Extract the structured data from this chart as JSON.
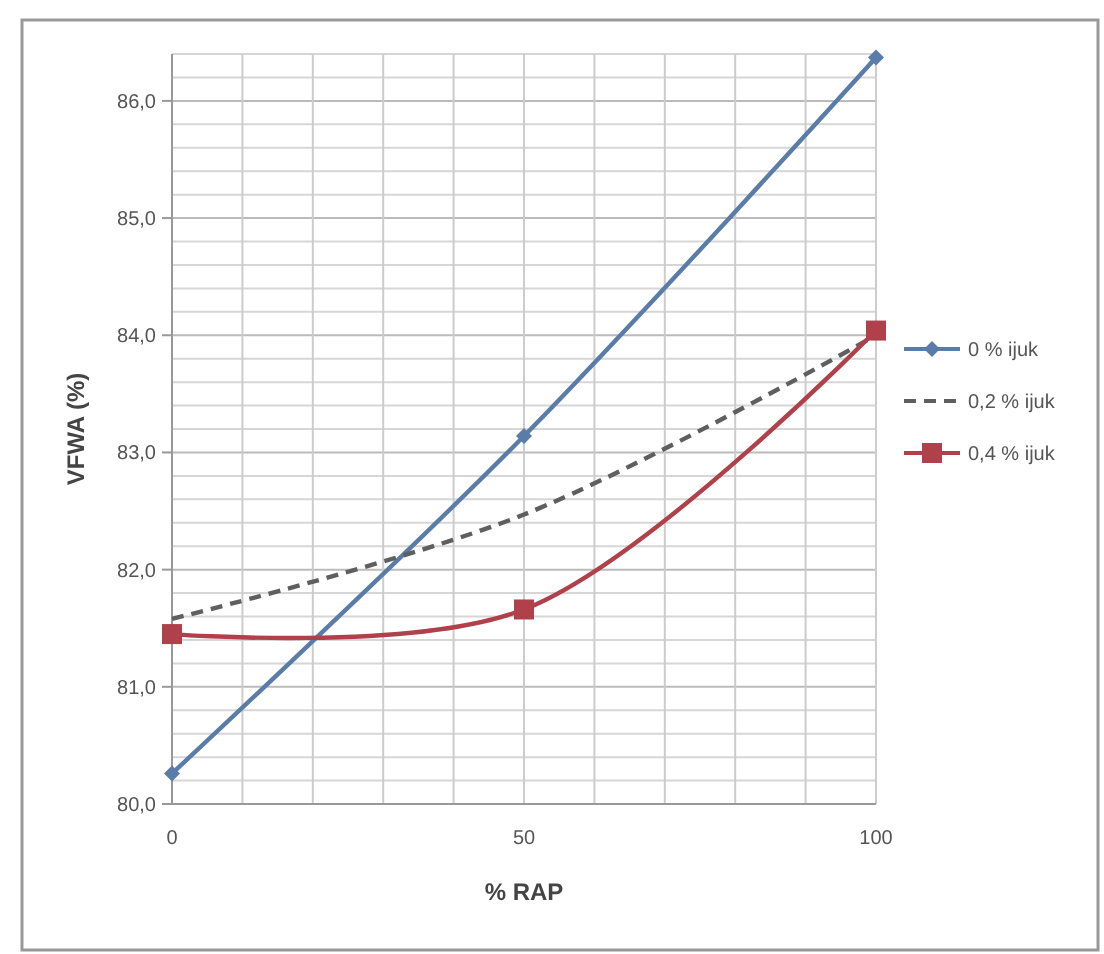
{
  "chart_data": {
    "type": "line",
    "xlabel": "% RAP",
    "ylabel": "VFWA (%)",
    "x": [
      0,
      50,
      100
    ],
    "xlim": [
      0,
      100
    ],
    "ylim": [
      80,
      86.4
    ],
    "xticks": [
      0,
      {
        "value": 10,
        "label": null
      },
      {
        "value": 20,
        "label": null
      },
      {
        "value": 30,
        "label": null
      },
      {
        "value": 40,
        "label": null
      },
      50,
      {
        "value": 60,
        "label": null
      },
      {
        "value": 70,
        "label": null
      },
      {
        "value": 80,
        "label": null
      },
      {
        "value": 90,
        "label": null
      },
      100
    ],
    "yticks": [
      {
        "value": 80,
        "label": "80,0"
      },
      {
        "value": 80.2,
        "label": null
      },
      {
        "value": 80.4,
        "label": null
      },
      {
        "value": 80.6,
        "label": null
      },
      {
        "value": 80.8,
        "label": null
      },
      {
        "value": 81,
        "label": "81,0"
      },
      {
        "value": 81.2,
        "label": null
      },
      {
        "value": 81.4,
        "label": null
      },
      {
        "value": 81.6,
        "label": null
      },
      {
        "value": 81.8,
        "label": null
      },
      {
        "value": 82,
        "label": "82,0"
      },
      {
        "value": 82.2,
        "label": null
      },
      {
        "value": 82.4,
        "label": null
      },
      {
        "value": 82.6,
        "label": null
      },
      {
        "value": 82.8,
        "label": null
      },
      {
        "value": 83,
        "label": "83,0"
      },
      {
        "value": 83.2,
        "label": null
      },
      {
        "value": 83.4,
        "label": null
      },
      {
        "value": 83.6,
        "label": null
      },
      {
        "value": 83.8,
        "label": null
      },
      {
        "value": 84,
        "label": "84,0"
      },
      {
        "value": 84.2,
        "label": null
      },
      {
        "value": 84.4,
        "label": null
      },
      {
        "value": 84.6,
        "label": null
      },
      {
        "value": 84.8,
        "label": null
      },
      {
        "value": 85,
        "label": "85,0"
      },
      {
        "value": 85.2,
        "label": null
      },
      {
        "value": 85.4,
        "label": null
      },
      {
        "value": 85.6,
        "label": null
      },
      {
        "value": 85.8,
        "label": null
      },
      {
        "value": 86,
        "label": "86,0"
      },
      {
        "value": 86.2,
        "label": null
      },
      {
        "value": 86.4,
        "label": null
      }
    ],
    "grid": true,
    "legend": "right",
    "series": [
      {
        "name": "0 % ijuk",
        "color": "#5a7ca8",
        "values": [
          80.26,
          83.14,
          86.37
        ],
        "marker": "diamond",
        "line_style": "solid"
      },
      {
        "name": "0,2 % ijuk",
        "color": "#5f5f5f",
        "values": [
          81.58,
          82.47,
          84.0
        ],
        "marker": "none",
        "line_style": "dashed"
      },
      {
        "name": "0,4 % ijuk",
        "color": "#b0404a",
        "values": [
          81.45,
          81.66,
          84.04
        ],
        "marker": "square",
        "line_style": "solid"
      }
    ]
  }
}
